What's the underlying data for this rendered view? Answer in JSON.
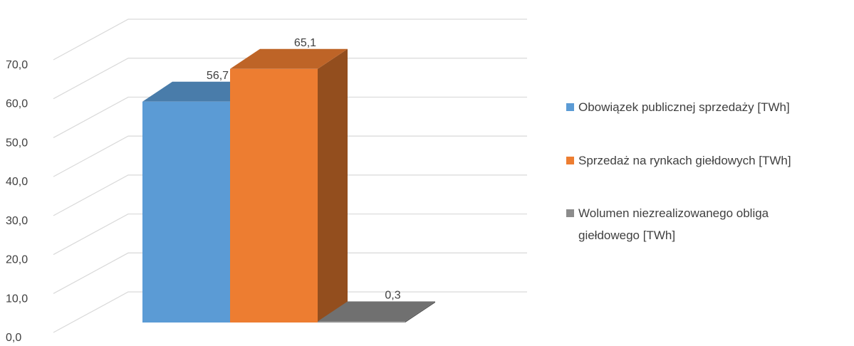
{
  "chart_data": {
    "type": "bar",
    "categories": [
      ""
    ],
    "series": [
      {
        "name": "Obowiązek publicznej sprzedaży [TWh]",
        "values": [
          56.7
        ],
        "color": "#5B9BD5",
        "label": "56,7"
      },
      {
        "name": "Sprzedaż na rynkach giełdowych [TWh]",
        "values": [
          65.1
        ],
        "color": "#ED7D31",
        "label": "65,1"
      },
      {
        "name": "Wolumen niezrealizowanego obliga giełdowego [TWh]",
        "values": [
          0.3
        ],
        "color": "#8C8C8C",
        "label": "0,3",
        "legend_lines": [
          " Wolumen niezrealizowanego obliga",
          "giełdowego [TWh]"
        ]
      }
    ],
    "ylim": [
      0,
      70
    ],
    "y_ticks": [
      "0,0",
      "10,0",
      "20,0",
      "30,0",
      "40,0",
      "50,0",
      "60,0",
      "70,0"
    ],
    "grid": true,
    "three_d": true,
    "legend_position": "right"
  }
}
